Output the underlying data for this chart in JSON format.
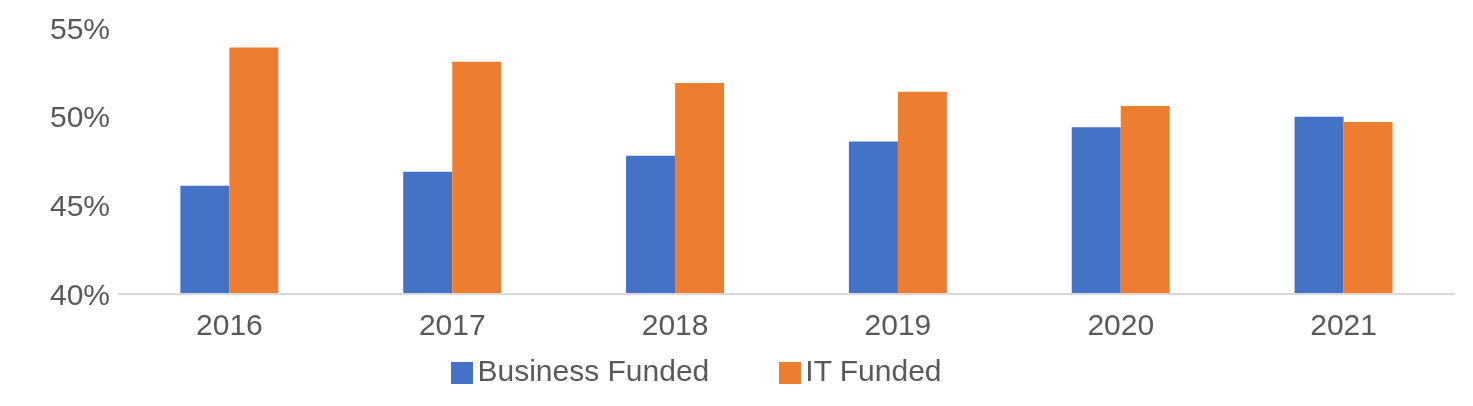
{
  "chart_data": {
    "type": "bar",
    "categories": [
      "2016",
      "2017",
      "2018",
      "2019",
      "2020",
      "2021"
    ],
    "series": [
      {
        "name": "Business Funded",
        "color": "#4472c4",
        "values": [
          46.1,
          46.9,
          47.8,
          48.6,
          49.4,
          50.0
        ]
      },
      {
        "name": "IT Funded",
        "color": "#ed7d31",
        "values": [
          53.9,
          53.1,
          51.9,
          51.4,
          50.6,
          49.7
        ]
      }
    ],
    "ylim": [
      40,
      55
    ],
    "yticks": [
      {
        "value": 40,
        "label": "40%"
      },
      {
        "value": 45,
        "label": "45%"
      },
      {
        "value": 50,
        "label": "50%"
      },
      {
        "value": 55,
        "label": "55%"
      }
    ],
    "grid": false,
    "legend": "bottom"
  }
}
